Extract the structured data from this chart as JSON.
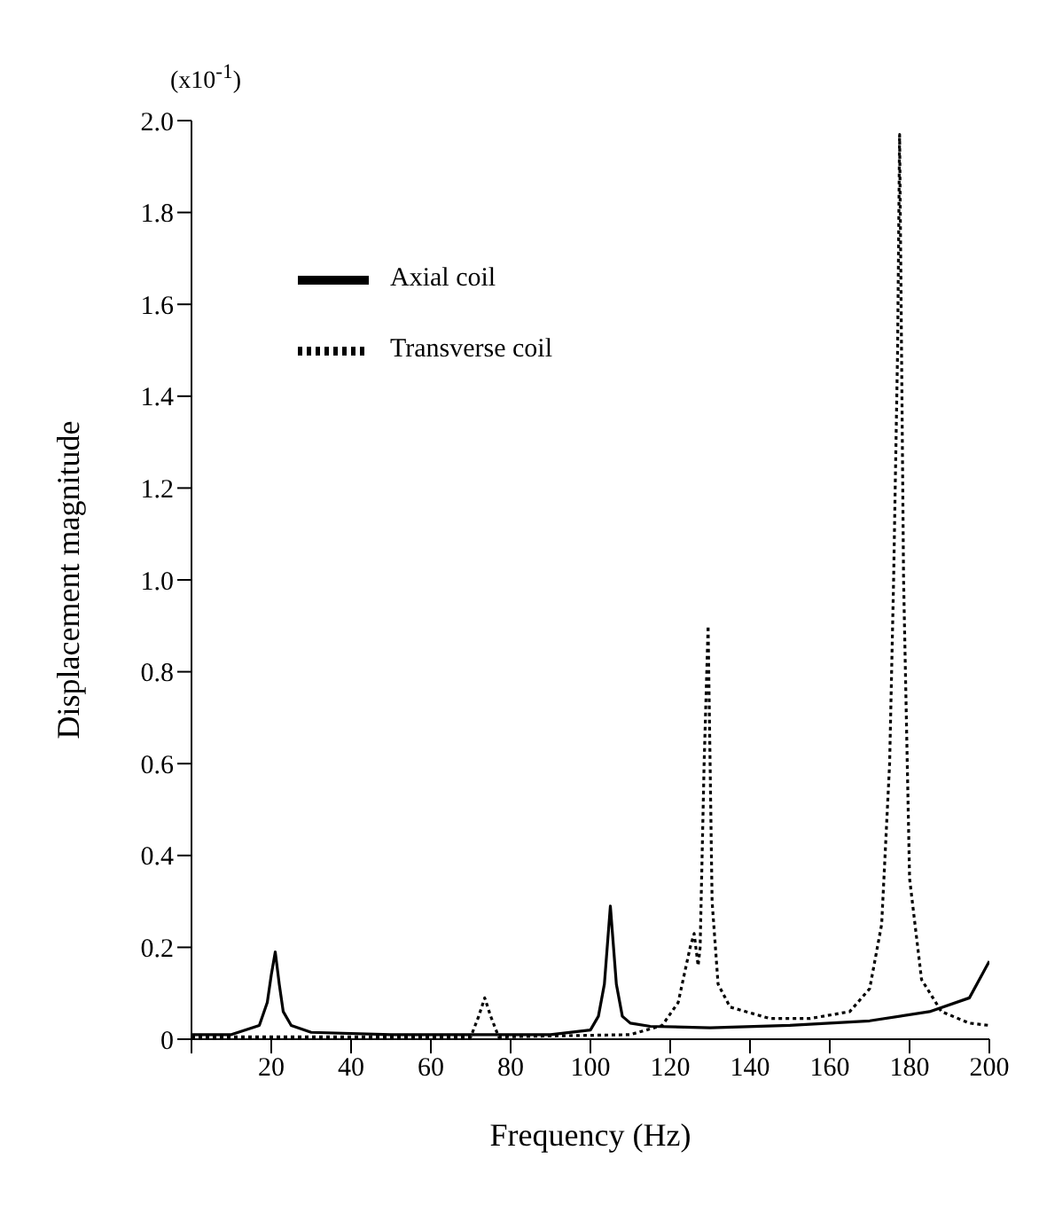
{
  "chart_data": {
    "type": "line",
    "xlabel": "Frequency (Hz)",
    "ylabel": "Displacement magnitude",
    "annotations": [
      "(x10$^{-1}$)"
    ],
    "xlim": [
      0,
      200
    ],
    "xticks": [
      {
        "value": 0,
        "label": null
      },
      20,
      40,
      60,
      80,
      100,
      120,
      140,
      160,
      180,
      200
    ],
    "ylim": [
      0,
      2.0
    ],
    "yticks": [
      {
        "value": 0,
        "label": "0"
      },
      {
        "value": 0.2,
        "label": "0.2"
      },
      {
        "value": 0.4,
        "label": "0.4"
      },
      {
        "value": 0.6,
        "label": "0.6"
      },
      {
        "value": 0.8,
        "label": "0.8"
      },
      {
        "value": 1.0,
        "label": "1.0"
      },
      {
        "value": 1.2,
        "label": "1.2"
      },
      {
        "value": 1.4,
        "label": "1.4"
      },
      {
        "value": 1.6,
        "label": "1.6"
      },
      {
        "value": 1.8,
        "label": "1.8"
      },
      {
        "value": 2.0,
        "label": "2.0"
      }
    ],
    "grid": false,
    "legend": "top left",
    "marker": "none",
    "series": [
      {
        "name": "Axial coil",
        "color": "#000000",
        "line_style": "solid",
        "x": [
          0,
          10,
          17,
          19,
          20,
          21,
          22,
          23,
          25,
          30,
          50,
          90,
          100,
          102,
          103.5,
          105,
          106.5,
          108,
          110,
          115,
          130,
          150,
          170,
          185,
          195,
          200
        ],
        "values": [
          0.01,
          0.01,
          0.03,
          0.08,
          0.14,
          0.19,
          0.12,
          0.06,
          0.03,
          0.015,
          0.01,
          0.01,
          0.02,
          0.05,
          0.12,
          0.29,
          0.12,
          0.05,
          0.035,
          0.028,
          0.025,
          0.03,
          0.04,
          0.06,
          0.09,
          0.17
        ]
      },
      {
        "name": "Transverse coil",
        "color": "#000000",
        "line_style": "dotted",
        "x": [
          0,
          70,
          72,
          73.5,
          75,
          77,
          110,
          118,
          122,
          125,
          126,
          127,
          127.5,
          128.5,
          129.5,
          130.5,
          132,
          135,
          145,
          155,
          165,
          170,
          173,
          175,
          176,
          177,
          177.5,
          178.5,
          180,
          183,
          188,
          195,
          200
        ],
        "values": [
          0.005,
          0.005,
          0.05,
          0.09,
          0.05,
          0.005,
          0.01,
          0.03,
          0.08,
          0.2,
          0.23,
          0.16,
          0.2,
          0.6,
          0.9,
          0.3,
          0.12,
          0.07,
          0.045,
          0.045,
          0.06,
          0.11,
          0.25,
          0.6,
          1.0,
          1.5,
          1.97,
          1.0,
          0.35,
          0.13,
          0.06,
          0.035,
          0.03
        ]
      }
    ]
  }
}
